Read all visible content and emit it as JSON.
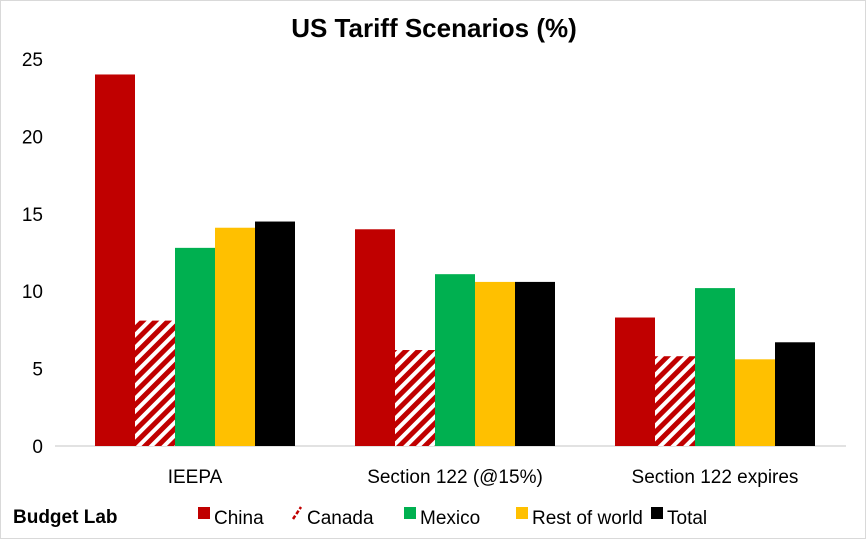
{
  "chart_data": {
    "type": "bar",
    "title": "US Tariff Scenarios (%)",
    "categories": [
      "IEEPA",
      "Section 122 (@15%)",
      "Section 122 expires"
    ],
    "series": [
      {
        "name": "China",
        "color": "#c00000",
        "pattern": "solid",
        "values": [
          24.0,
          14.0,
          8.3
        ]
      },
      {
        "name": "Canada",
        "color": "#c00000",
        "pattern": "diagonal-stripes",
        "values": [
          8.1,
          6.2,
          5.8
        ]
      },
      {
        "name": "Mexico",
        "color": "#00b050",
        "pattern": "solid",
        "values": [
          12.8,
          11.1,
          10.2
        ]
      },
      {
        "name": "Rest of world",
        "color": "#ffc000",
        "pattern": "solid",
        "values": [
          14.1,
          10.6,
          5.6
        ]
      },
      {
        "name": "Total",
        "color": "#000000",
        "pattern": "solid",
        "values": [
          14.5,
          10.6,
          6.7
        ]
      }
    ],
    "ylim": [
      0,
      25
    ],
    "yticks": [
      "0",
      "5",
      "10",
      "15",
      "20",
      "25"
    ],
    "grid": false,
    "legend": "bottom"
  },
  "footer": {
    "brand": "Budget Lab"
  }
}
